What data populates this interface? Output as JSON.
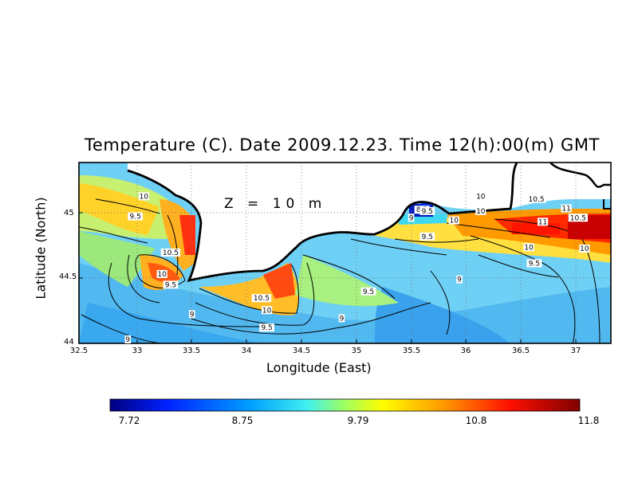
{
  "chart_data": {
    "type": "heatmap",
    "title": "Temperature (C). Date 2009.12.23. Time 12(h):00(m) GMT",
    "annotation": "Z = 10 m",
    "xlabel": "Longitude (East)",
    "ylabel": "Latitude (North)",
    "xlim": [
      32.5,
      37.3
    ],
    "ylim": [
      44.0,
      45.35
    ],
    "x_ticks": [
      "32.5",
      "33",
      "33.5",
      "34",
      "34.5",
      "35",
      "35.5",
      "36",
      "36.5",
      "37"
    ],
    "y_ticks": [
      "44",
      "44.5",
      "45"
    ],
    "grid": true,
    "colorbar": {
      "min": 7.72,
      "max": 11.8,
      "tick_labels": [
        "7.72",
        "8.75",
        "9.79",
        "10.8",
        "11.8"
      ],
      "colormap": "rainbow (blue to dark red)"
    },
    "contour_labels": [
      {
        "text": "10",
        "lon": 32.6,
        "lat": 45.08
      },
      {
        "text": "9.5",
        "lon": 32.52,
        "lat": 44.93
      },
      {
        "text": "10.5",
        "lon": 32.85,
        "lat": 44.66
      },
      {
        "text": "10",
        "lon": 32.77,
        "lat": 44.5
      },
      {
        "text": "9.5",
        "lon": 32.85,
        "lat": 44.42
      },
      {
        "text": "9",
        "lon": 33.05,
        "lat": 44.2
      },
      {
        "text": "9",
        "lon": 32.45,
        "lat": 44.0
      },
      {
        "text": "10.5",
        "lon": 33.7,
        "lat": 44.32
      },
      {
        "text": "10",
        "lon": 33.75,
        "lat": 44.23
      },
      {
        "text": "9.5",
        "lon": 33.75,
        "lat": 44.1
      },
      {
        "text": "9",
        "lon": 34.45,
        "lat": 44.17
      },
      {
        "text": "9.5",
        "lon": 34.7,
        "lat": 44.37
      },
      {
        "text": "9",
        "lon": 35.1,
        "lat": 44.92
      },
      {
        "text": "8.5",
        "lon": 35.2,
        "lat": 44.98
      },
      {
        "text": "9.5",
        "lon": 35.25,
        "lat": 44.97
      },
      {
        "text": "10",
        "lon": 35.75,
        "lat": 45.08
      },
      {
        "text": "10.5",
        "lon": 36.27,
        "lat": 45.06
      },
      {
        "text": "10",
        "lon": 35.5,
        "lat": 44.9
      },
      {
        "text": "10",
        "lon": 35.75,
        "lat": 44.97
      },
      {
        "text": "9.5",
        "lon": 35.25,
        "lat": 44.78
      },
      {
        "text": "9",
        "lon": 35.55,
        "lat": 44.46
      },
      {
        "text": "11",
        "lon": 36.55,
        "lat": 44.99
      },
      {
        "text": "11",
        "lon": 36.33,
        "lat": 44.89
      },
      {
        "text": "10.5",
        "lon": 36.66,
        "lat": 44.92
      },
      {
        "text": "10",
        "lon": 36.2,
        "lat": 44.7
      },
      {
        "text": "9.5",
        "lon": 36.25,
        "lat": 44.58
      },
      {
        "text": "10",
        "lon": 36.72,
        "lat": 44.69
      }
    ],
    "colors": {
      "warm_dark": "#8b0000",
      "warm": "#ff2a00",
      "orange": "#ff9a00",
      "yellow": "#ffe800",
      "greenish": "#9cf080",
      "cyan": "#40d8f0",
      "mid_blue": "#2aa0f0",
      "deep_blue": "#0018c0"
    }
  }
}
